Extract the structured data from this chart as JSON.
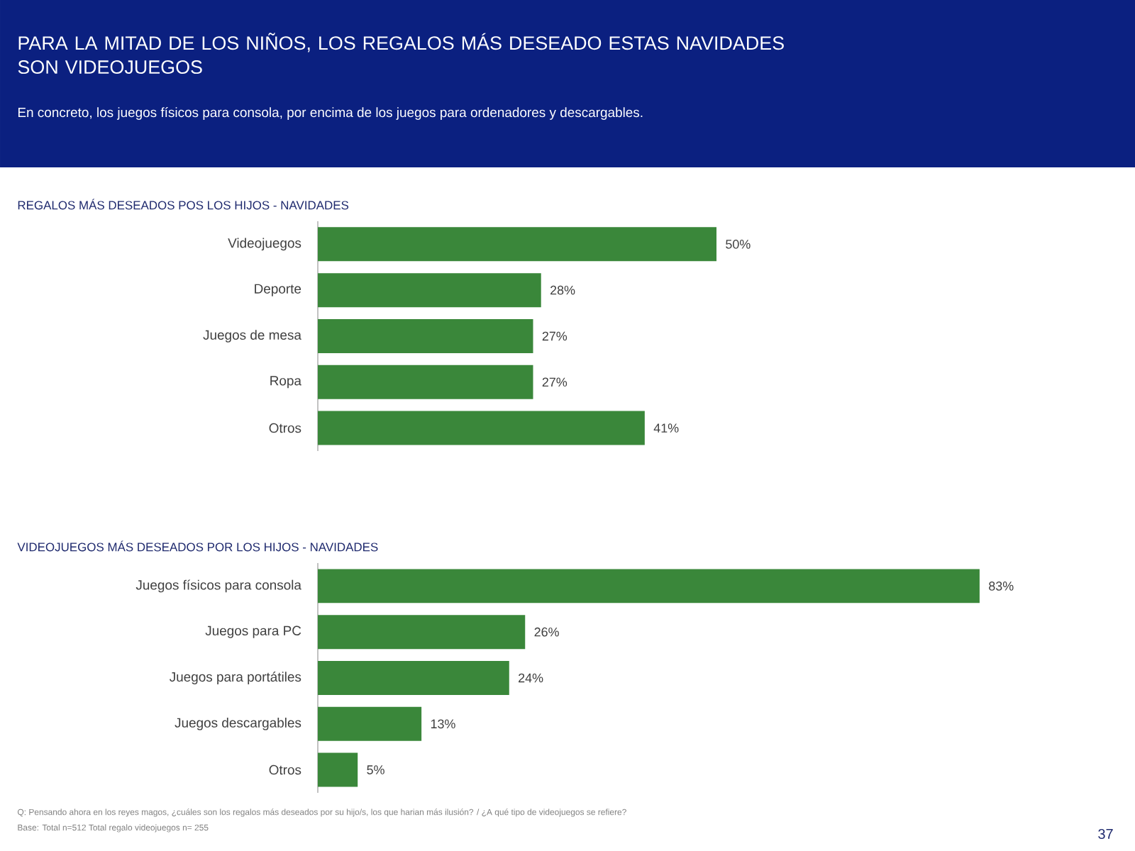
{
  "chart_data": [
    {
      "type": "other",
      "title": "PARA LA MITAD DE LOS NIÑOS, LOS REGALOS MÁS DESEADO ESTAS NAVIDADES SON VIDEOJUEGOS",
      "subtitle": "En concreto, los juegos físicos para consola, por encima de los juegos para ordenadores y descargables."
    },
    {
      "type": "bar",
      "orientation": "horizontal",
      "title": "REGALOS MÁS DESEADOS POS LOS HIJOS - NAVIDADES",
      "categories": [
        "Videojuegos",
        "Deporte",
        "Juegos de mesa",
        "Ropa",
        "Otros"
      ],
      "values": [
        50,
        28,
        27,
        27,
        41
      ],
      "value_labels": [
        "50%",
        "28%",
        "27%",
        "27%",
        "41%"
      ],
      "color": "#3a873a"
    },
    {
      "type": "bar",
      "orientation": "horizontal",
      "title": "VIDEOJUEGOS MÁS DESEADOS POR LOS HIJOS - NAVIDADES",
      "categories": [
        "Juegos físicos para consola",
        "Juegos para PC",
        "Juegos para portátiles",
        "Juegos descargables",
        "Otros"
      ],
      "values": [
        83,
        26,
        24,
        13,
        5
      ],
      "value_labels": [
        "83%",
        "26%",
        "24%",
        "13%",
        "5%"
      ],
      "color": "#3a873a",
      "annotations": [
        "Q: Pensando ahora en los reyes magos, ¿cuáles son los regalos más deseados por su hijo/s, los que harian más ilusión? / ¿A qué tipo de videojuegos se refiere?",
        "Base:  Total n=512 Total regalo videojuegos n= 255",
        "37"
      ]
    }
  ]
}
